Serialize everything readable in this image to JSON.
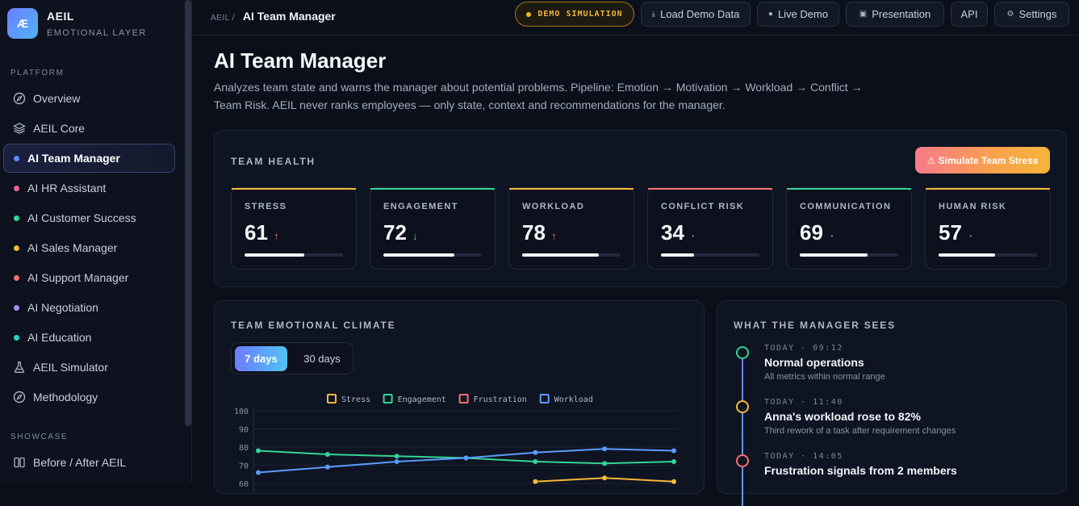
{
  "brand": {
    "logo_text": "Æ",
    "name": "AEIL",
    "subtitle": "EMOTIONAL LAYER"
  },
  "sidebar": {
    "sections": [
      {
        "title": "PLATFORM",
        "items": [
          {
            "label": "Overview",
            "icon": "compass-icon"
          },
          {
            "label": "AEIL Core",
            "icon": "layers-icon"
          },
          {
            "label": "AI Team Manager",
            "dot": "#5b8cff",
            "active": true
          },
          {
            "label": "AI HR Assistant",
            "dot": "#f06292"
          },
          {
            "label": "AI Customer Success",
            "dot": "#34d399"
          },
          {
            "label": "AI Sales Manager",
            "dot": "#f5b83a"
          },
          {
            "label": "AI Support Manager",
            "dot": "#f87171"
          },
          {
            "label": "AI Negotiation",
            "dot": "#a78bfa"
          },
          {
            "label": "AI Education",
            "dot": "#2dd4bf"
          },
          {
            "label": "AEIL Simulator",
            "icon": "flask-icon"
          },
          {
            "label": "Methodology",
            "icon": "compass-icon"
          }
        ]
      },
      {
        "title": "SHOWCASE",
        "items": [
          {
            "label": "Before / After AEIL",
            "icon": "columns-icon"
          }
        ]
      }
    ]
  },
  "topbar": {
    "breadcrumb_root": "AEIL /",
    "breadcrumb_current": "AI Team Manager",
    "demo_badge": "DEMO SIMULATION",
    "buttons": {
      "load_demo": "Load Demo Data",
      "live_demo": "Live Demo",
      "presentation": "Presentation",
      "api": "API",
      "settings": "Settings"
    }
  },
  "page": {
    "title": "AI Team Manager",
    "description": "Analyzes team state and warns the manager about potential problems. Pipeline: Emotion → Motivation → Workload → Conflict → Team Risk. AEIL never ranks employees — only state, context and recommendations for the manager."
  },
  "team_health": {
    "title": "TEAM HEALTH",
    "simulate_button": "⚠ Simulate Team Stress",
    "metrics": [
      {
        "label": "STRESS",
        "value": "61",
        "trend": "↑",
        "trend_color": "#f87171",
        "accent": "#f5b83a",
        "fill": 0.61
      },
      {
        "label": "ENGAGEMENT",
        "value": "72",
        "trend": "↓",
        "trend_color": "#34d399",
        "accent": "#34d399",
        "fill": 0.72
      },
      {
        "label": "WORKLOAD",
        "value": "78",
        "trend": "↑",
        "trend_color": "#f87171",
        "accent": "#f5b83a",
        "fill": 0.78
      },
      {
        "label": "CONFLICT RISK",
        "value": "34",
        "trend": "·",
        "trend_color": "#8a93a6",
        "accent": "#f87171",
        "fill": 0.34
      },
      {
        "label": "COMMUNICATION",
        "value": "69",
        "trend": "·",
        "trend_color": "#8a93a6",
        "accent": "#34d399",
        "fill": 0.69
      },
      {
        "label": "HUMAN RISK",
        "value": "57",
        "trend": "·",
        "trend_color": "#8a93a6",
        "accent": "#f5b83a",
        "fill": 0.57
      }
    ]
  },
  "climate": {
    "title": "TEAM EMOTIONAL CLIMATE",
    "range_options": [
      "7 days",
      "30 days"
    ],
    "selected_range": "7 days"
  },
  "chart_data": {
    "type": "line",
    "title": "",
    "xlabel": "",
    "ylabel": "",
    "ylim": [
      60,
      100
    ],
    "yticks": [
      100,
      90,
      80,
      70,
      60
    ],
    "grid": true,
    "legend_position": "top",
    "x": [
      1,
      2,
      3,
      4,
      5,
      6,
      7
    ],
    "series": [
      {
        "name": "Stress",
        "color": "#f5b83a",
        "values": [
          null,
          null,
          null,
          null,
          61,
          63,
          61
        ]
      },
      {
        "name": "Engagement",
        "color": "#34d399",
        "values": [
          78,
          76,
          75,
          74,
          72,
          71,
          72
        ]
      },
      {
        "name": "Frustration",
        "color": "#f87171",
        "values": [
          null,
          null,
          null,
          null,
          null,
          null,
          null
        ]
      },
      {
        "name": "Workload",
        "color": "#5b9cff",
        "values": [
          66,
          69,
          72,
          74,
          77,
          79,
          78
        ]
      }
    ]
  },
  "manager_view": {
    "title": "WHAT THE MANAGER SEES",
    "events": [
      {
        "time": "TODAY · 09:12",
        "headline": "Normal operations",
        "detail": "All metrics within normal range",
        "color": "#34d399"
      },
      {
        "time": "TODAY · 11:40",
        "headline": "Anna's workload rose to 82%",
        "detail": "Third rework of a task after requirement changes",
        "color": "#f5b83a"
      },
      {
        "time": "TODAY · 14:05",
        "headline": "Frustration signals from 2 members",
        "detail": "",
        "color": "#f87171"
      }
    ]
  }
}
